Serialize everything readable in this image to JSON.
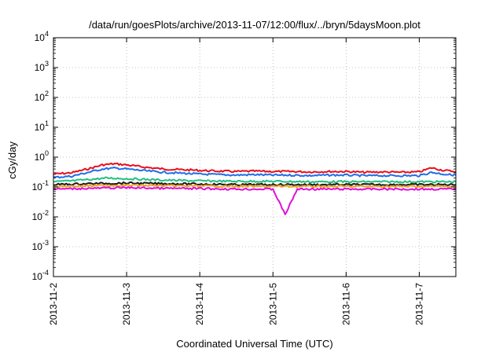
{
  "chart_data": {
    "type": "line",
    "title": "/data/run/goesPlots/archive/2013-11-07/12:00/flux/../bryn/5daysMoon.plot",
    "xlabel": "Coordinated Universal Time (UTC)",
    "ylabel": "cGy/day",
    "x_range_days_utc": [
      "2013-11-02",
      "2013-11-07 12:00"
    ],
    "x_ticks": [
      "2013-11-2",
      "2013-11-3",
      "2013-11-4",
      "2013-11-5",
      "2013-11-6",
      "2013-11-7"
    ],
    "y_scale": "log",
    "ylim": [
      0.0001,
      10000
    ],
    "y_ticks": [
      {
        "base": "10",
        "exp": "-4"
      },
      {
        "base": "10",
        "exp": "-3"
      },
      {
        "base": "10",
        "exp": "-2"
      },
      {
        "base": "10",
        "exp": "-1"
      },
      {
        "base": "10",
        "exp": "0"
      },
      {
        "base": "10",
        "exp": "1"
      },
      {
        "base": "10",
        "exp": "2"
      },
      {
        "base": "10",
        "exp": "3"
      },
      {
        "base": "10",
        "exp": "4"
      }
    ],
    "grid": true,
    "series": [
      {
        "color": "#e8101c",
        "points": [
          [
            "2013-11-02 00:00",
            0.27
          ],
          [
            "2013-11-02 06:00",
            0.3
          ],
          [
            "2013-11-02 12:00",
            0.42
          ],
          [
            "2013-11-02 16:00",
            0.55
          ],
          [
            "2013-11-02 20:00",
            0.6
          ],
          [
            "2013-11-03 00:00",
            0.55
          ],
          [
            "2013-11-03 06:00",
            0.46
          ],
          [
            "2013-11-03 12:00",
            0.4
          ],
          [
            "2013-11-03 18:00",
            0.38
          ],
          [
            "2013-11-04 00:00",
            0.36
          ],
          [
            "2013-11-04 06:00",
            0.34
          ],
          [
            "2013-11-04 12:00",
            0.33
          ],
          [
            "2013-11-04 18:00",
            0.34
          ],
          [
            "2013-11-05 00:00",
            0.33
          ],
          [
            "2013-11-05 06:00",
            0.33
          ],
          [
            "2013-11-05 12:00",
            0.32
          ],
          [
            "2013-11-05 18:00",
            0.33
          ],
          [
            "2013-11-06 00:00",
            0.33
          ],
          [
            "2013-11-06 06:00",
            0.31
          ],
          [
            "2013-11-06 12:00",
            0.32
          ],
          [
            "2013-11-06 18:00",
            0.31
          ],
          [
            "2013-11-07 00:00",
            0.32
          ],
          [
            "2013-11-07 04:00",
            0.44
          ],
          [
            "2013-11-07 08:00",
            0.36
          ],
          [
            "2013-11-07 12:00",
            0.33
          ]
        ]
      },
      {
        "color": "#1f6fe8",
        "points": [
          [
            "2013-11-02 00:00",
            0.21
          ],
          [
            "2013-11-02 06:00",
            0.23
          ],
          [
            "2013-11-02 12:00",
            0.32
          ],
          [
            "2013-11-02 16:00",
            0.4
          ],
          [
            "2013-11-02 20:00",
            0.43
          ],
          [
            "2013-11-03 00:00",
            0.4
          ],
          [
            "2013-11-03 06:00",
            0.35
          ],
          [
            "2013-11-03 12:00",
            0.31
          ],
          [
            "2013-11-03 18:00",
            0.29
          ],
          [
            "2013-11-04 00:00",
            0.27
          ],
          [
            "2013-11-04 06:00",
            0.26
          ],
          [
            "2013-11-04 12:00",
            0.25
          ],
          [
            "2013-11-04 18:00",
            0.26
          ],
          [
            "2013-11-05 00:00",
            0.25
          ],
          [
            "2013-11-05 06:00",
            0.25
          ],
          [
            "2013-11-05 12:00",
            0.24
          ],
          [
            "2013-11-05 18:00",
            0.25
          ],
          [
            "2013-11-06 00:00",
            0.25
          ],
          [
            "2013-11-06 06:00",
            0.24
          ],
          [
            "2013-11-06 12:00",
            0.24
          ],
          [
            "2013-11-06 18:00",
            0.24
          ],
          [
            "2013-11-07 00:00",
            0.24
          ],
          [
            "2013-11-07 04:00",
            0.31
          ],
          [
            "2013-11-07 08:00",
            0.27
          ],
          [
            "2013-11-07 12:00",
            0.25
          ]
        ]
      },
      {
        "color": "#20c080",
        "points": [
          [
            "2013-11-02 00:00",
            0.15
          ],
          [
            "2013-11-02 06:00",
            0.16
          ],
          [
            "2013-11-02 12:00",
            0.18
          ],
          [
            "2013-11-02 18:00",
            0.2
          ],
          [
            "2013-11-03 00:00",
            0.19
          ],
          [
            "2013-11-03 12:00",
            0.17
          ],
          [
            "2013-11-04 00:00",
            0.16
          ],
          [
            "2013-11-04 12:00",
            0.155
          ],
          [
            "2013-11-05 00:00",
            0.155
          ],
          [
            "2013-11-05 12:00",
            0.15
          ],
          [
            "2013-11-06 00:00",
            0.15
          ],
          [
            "2013-11-06 12:00",
            0.15
          ],
          [
            "2013-11-07 00:00",
            0.15
          ],
          [
            "2013-11-07 12:00",
            0.15
          ]
        ]
      },
      {
        "color": "#1a1a1a",
        "points": [
          [
            "2013-11-02 00:00",
            0.12
          ],
          [
            "2013-11-02 12:00",
            0.13
          ],
          [
            "2013-11-03 00:00",
            0.135
          ],
          [
            "2013-11-03 12:00",
            0.13
          ],
          [
            "2013-11-04 00:00",
            0.125
          ],
          [
            "2013-11-04 12:00",
            0.12
          ],
          [
            "2013-11-05 00:00",
            0.12
          ],
          [
            "2013-11-05 12:00",
            0.12
          ],
          [
            "2013-11-06 00:00",
            0.12
          ],
          [
            "2013-11-06 12:00",
            0.12
          ],
          [
            "2013-11-07 00:00",
            0.12
          ],
          [
            "2013-11-07 12:00",
            0.12
          ]
        ]
      },
      {
        "color": "#f0a020",
        "points": [
          [
            "2013-11-02 00:00",
            0.105
          ],
          [
            "2013-11-02 12:00",
            0.11
          ],
          [
            "2013-11-03 00:00",
            0.115
          ],
          [
            "2013-11-03 12:00",
            0.11
          ],
          [
            "2013-11-04 00:00",
            0.108
          ],
          [
            "2013-11-04 12:00",
            0.105
          ],
          [
            "2013-11-05 00:00",
            0.105
          ],
          [
            "2013-11-05 12:00",
            0.105
          ],
          [
            "2013-11-06 00:00",
            0.105
          ],
          [
            "2013-11-06 12:00",
            0.105
          ],
          [
            "2013-11-07 00:00",
            0.105
          ],
          [
            "2013-11-07 12:00",
            0.105
          ]
        ]
      },
      {
        "color": "#e010d8",
        "points": [
          [
            "2013-11-02 00:00",
            0.085
          ],
          [
            "2013-11-02 12:00",
            0.09
          ],
          [
            "2013-11-03 00:00",
            0.095
          ],
          [
            "2013-11-03 12:00",
            0.09
          ],
          [
            "2013-11-04 00:00",
            0.088
          ],
          [
            "2013-11-04 12:00",
            0.085
          ],
          [
            "2013-11-05 00:00",
            0.085
          ],
          [
            "2013-11-05 04:00",
            0.012
          ],
          [
            "2013-11-05 08:00",
            0.085
          ],
          [
            "2013-11-05 12:00",
            0.085
          ],
          [
            "2013-11-06 00:00",
            0.085
          ],
          [
            "2013-11-06 12:00",
            0.085
          ],
          [
            "2013-11-07 00:00",
            0.085
          ],
          [
            "2013-11-07 12:00",
            0.085
          ]
        ]
      }
    ]
  }
}
